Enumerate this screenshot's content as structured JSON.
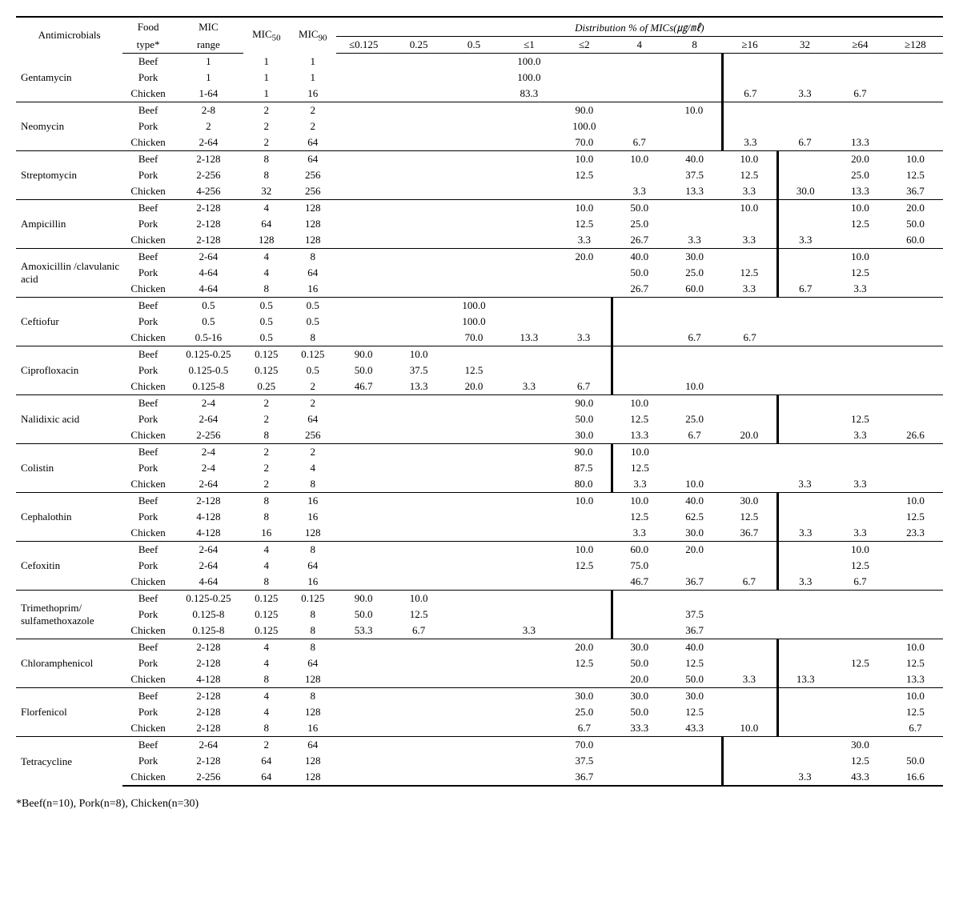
{
  "headers": {
    "antimicrobials": "Antimicrobials",
    "food_type": "Food type*",
    "mic_range": "MIC range",
    "mic50": "MIC",
    "mic50_sub": "50",
    "mic90": "MIC",
    "mic90_sub": "90",
    "dist_title": "Distribution % of  MICs(㎍/㎖)",
    "dist_cols": [
      "≤0.125",
      "0.25",
      "0.5",
      "≤1",
      "≤2",
      "4",
      "8",
      "≥16",
      "32",
      "≥64",
      "≥128"
    ]
  },
  "footnote": "*Beef(n=10), Pork(n=8), Chicken(n=30)",
  "groups": [
    {
      "name": "Gentamycin",
      "bp": 7,
      "rows": [
        {
          "food": "Beef",
          "range": "1",
          "m50": "1",
          "m90": "1",
          "d": [
            "",
            "",
            "",
            "100.0",
            "",
            "",
            "",
            "",
            "",
            "",
            ""
          ]
        },
        {
          "food": "Pork",
          "range": "1",
          "m50": "1",
          "m90": "1",
          "d": [
            "",
            "",
            "",
            "100.0",
            "",
            "",
            "",
            "",
            "",
            "",
            ""
          ]
        },
        {
          "food": "Chicken",
          "range": "1-64",
          "m50": "1",
          "m90": "16",
          "d": [
            "",
            "",
            "",
            "83.3",
            "",
            "",
            "",
            "6.7",
            "3.3",
            "6.7",
            ""
          ]
        }
      ]
    },
    {
      "name": "Neomycin",
      "bp": 7,
      "rows": [
        {
          "food": "Beef",
          "range": "2-8",
          "m50": "2",
          "m90": "2",
          "d": [
            "",
            "",
            "",
            "",
            "90.0",
            "",
            "10.0",
            "",
            "",
            "",
            ""
          ]
        },
        {
          "food": "Pork",
          "range": "2",
          "m50": "2",
          "m90": "2",
          "d": [
            "",
            "",
            "",
            "",
            "100.0",
            "",
            "",
            "",
            "",
            "",
            ""
          ]
        },
        {
          "food": "Chicken",
          "range": "2-64",
          "m50": "2",
          "m90": "64",
          "d": [
            "",
            "",
            "",
            "",
            "70.0",
            "6.7",
            "",
            "3.3",
            "6.7",
            "13.3",
            ""
          ]
        }
      ]
    },
    {
      "name": "Streptomycin",
      "bp": 8,
      "rows": [
        {
          "food": "Beef",
          "range": "2-128",
          "m50": "8",
          "m90": "64",
          "d": [
            "",
            "",
            "",
            "",
            "10.0",
            "10.0",
            "40.0",
            "10.0",
            "",
            "20.0",
            "10.0"
          ]
        },
        {
          "food": "Pork",
          "range": "2-256",
          "m50": "8",
          "m90": "256",
          "d": [
            "",
            "",
            "",
            "",
            "12.5",
            "",
            "37.5",
            "12.5",
            "",
            "25.0",
            "12.5"
          ]
        },
        {
          "food": "Chicken",
          "range": "4-256",
          "m50": "32",
          "m90": "256",
          "d": [
            "",
            "",
            "",
            "",
            "",
            "3.3",
            "13.3",
            "3.3",
            "30.0",
            "13.3",
            "36.7"
          ]
        }
      ]
    },
    {
      "name": "Ampicillin",
      "bp": 8,
      "rows": [
        {
          "food": "Beef",
          "range": "2-128",
          "m50": "4",
          "m90": "128",
          "d": [
            "",
            "",
            "",
            "",
            "10.0",
            "50.0",
            "",
            "10.0",
            "",
            "10.0",
            "20.0"
          ]
        },
        {
          "food": "Pork",
          "range": "2-128",
          "m50": "64",
          "m90": "128",
          "d": [
            "",
            "",
            "",
            "",
            "12.5",
            "25.0",
            "",
            "",
            "",
            "12.5",
            "50.0"
          ]
        },
        {
          "food": "Chicken",
          "range": "2-128",
          "m50": "128",
          "m90": "128",
          "d": [
            "",
            "",
            "",
            "",
            "3.3",
            "26.7",
            "3.3",
            "3.3",
            "3.3",
            "",
            "60.0"
          ]
        }
      ]
    },
    {
      "name": "Amoxicillin /clavulanic acid",
      "bp": 8,
      "rows": [
        {
          "food": "Beef",
          "range": "2-64",
          "m50": "4",
          "m90": "8",
          "d": [
            "",
            "",
            "",
            "",
            "20.0",
            "40.0",
            "30.0",
            "",
            "",
            "10.0",
            ""
          ]
        },
        {
          "food": "Pork",
          "range": "4-64",
          "m50": "4",
          "m90": "64",
          "d": [
            "",
            "",
            "",
            "",
            "",
            "50.0",
            "25.0",
            "12.5",
            "",
            "12.5",
            ""
          ]
        },
        {
          "food": "Chicken",
          "range": "4-64",
          "m50": "8",
          "m90": "16",
          "d": [
            "",
            "",
            "",
            "",
            "",
            "26.7",
            "60.0",
            "3.3",
            "6.7",
            "3.3",
            ""
          ]
        }
      ]
    },
    {
      "name": "Ceftiofur",
      "bp": 5,
      "rows": [
        {
          "food": "Beef",
          "range": "0.5",
          "m50": "0.5",
          "m90": "0.5",
          "d": [
            "",
            "",
            "100.0",
            "",
            "",
            "",
            "",
            "",
            "",
            "",
            ""
          ]
        },
        {
          "food": "Pork",
          "range": "0.5",
          "m50": "0.5",
          "m90": "0.5",
          "d": [
            "",
            "",
            "100.0",
            "",
            "",
            "",
            "",
            "",
            "",
            "",
            ""
          ]
        },
        {
          "food": "Chicken",
          "range": "0.5-16",
          "m50": "0.5",
          "m90": "8",
          "d": [
            "",
            "",
            "70.0",
            "13.3",
            "3.3",
            "",
            "6.7",
            "6.7",
            "",
            "",
            ""
          ]
        }
      ]
    },
    {
      "name": "Ciprofloxacin",
      "bp": 5,
      "rows": [
        {
          "food": "Beef",
          "range": "0.125-0.25",
          "m50": "0.125",
          "m90": "0.125",
          "d": [
            "90.0",
            "10.0",
            "",
            "",
            "",
            "",
            "",
            "",
            "",
            "",
            ""
          ]
        },
        {
          "food": "Pork",
          "range": "0.125-0.5",
          "m50": "0.125",
          "m90": "0.5",
          "d": [
            "50.0",
            "37.5",
            "12.5",
            "",
            "",
            "",
            "",
            "",
            "",
            "",
            ""
          ]
        },
        {
          "food": "Chicken",
          "range": "0.125-8",
          "m50": "0.25",
          "m90": "2",
          "d": [
            "46.7",
            "13.3",
            "20.0",
            "3.3",
            "6.7",
            "",
            "10.0",
            "",
            "",
            "",
            ""
          ]
        }
      ]
    },
    {
      "name": "Nalidixic acid",
      "bp": 8,
      "rows": [
        {
          "food": "Beef",
          "range": "2-4",
          "m50": "2",
          "m90": "2",
          "d": [
            "",
            "",
            "",
            "",
            "90.0",
            "10.0",
            "",
            "",
            "",
            "",
            ""
          ]
        },
        {
          "food": "Pork",
          "range": "2-64",
          "m50": "2",
          "m90": "64",
          "d": [
            "",
            "",
            "",
            "",
            "50.0",
            "12.5",
            "25.0",
            "",
            "",
            "12.5",
            ""
          ]
        },
        {
          "food": "Chicken",
          "range": "2-256",
          "m50": "8",
          "m90": "256",
          "d": [
            "",
            "",
            "",
            "",
            "30.0",
            "13.3",
            "6.7",
            "20.0",
            "",
            "3.3",
            "26.6"
          ]
        }
      ]
    },
    {
      "name": "Colistin",
      "bp": 5,
      "rows": [
        {
          "food": "Beef",
          "range": "2-4",
          "m50": "2",
          "m90": "2",
          "d": [
            "",
            "",
            "",
            "",
            "90.0",
            "10.0",
            "",
            "",
            "",
            "",
            ""
          ]
        },
        {
          "food": "Pork",
          "range": "2-4",
          "m50": "2",
          "m90": "4",
          "d": [
            "",
            "",
            "",
            "",
            "87.5",
            "12.5",
            "",
            "",
            "",
            "",
            ""
          ]
        },
        {
          "food": "Chicken",
          "range": "2-64",
          "m50": "2",
          "m90": "8",
          "d": [
            "",
            "",
            "",
            "",
            "80.0",
            "3.3",
            "10.0",
            "",
            "3.3",
            "3.3",
            ""
          ]
        }
      ]
    },
    {
      "name": "Cephalothin",
      "bp": 8,
      "rows": [
        {
          "food": "Beef",
          "range": "2-128",
          "m50": "8",
          "m90": "16",
          "d": [
            "",
            "",
            "",
            "",
            "10.0",
            "10.0",
            "40.0",
            "30.0",
            "",
            "",
            "10.0"
          ]
        },
        {
          "food": "Pork",
          "range": "4-128",
          "m50": "8",
          "m90": "16",
          "d": [
            "",
            "",
            "",
            "",
            "",
            "12.5",
            "62.5",
            "12.5",
            "",
            "",
            "12.5"
          ]
        },
        {
          "food": "Chicken",
          "range": "4-128",
          "m50": "16",
          "m90": "128",
          "d": [
            "",
            "",
            "",
            "",
            "",
            "3.3",
            "30.0",
            "36.7",
            "3.3",
            "3.3",
            "23.3"
          ]
        }
      ]
    },
    {
      "name": "Cefoxitin",
      "bp": 8,
      "rows": [
        {
          "food": "Beef",
          "range": "2-64",
          "m50": "4",
          "m90": "8",
          "d": [
            "",
            "",
            "",
            "",
            "10.0",
            "60.0",
            "20.0",
            "",
            "",
            "10.0",
            ""
          ]
        },
        {
          "food": "Pork",
          "range": "2-64",
          "m50": "4",
          "m90": "64",
          "d": [
            "",
            "",
            "",
            "",
            "12.5",
            "75.0",
            "",
            "",
            "",
            "12.5",
            ""
          ]
        },
        {
          "food": "Chicken",
          "range": "4-64",
          "m50": "8",
          "m90": "16",
          "d": [
            "",
            "",
            "",
            "",
            "",
            "46.7",
            "36.7",
            "6.7",
            "3.3",
            "6.7",
            ""
          ]
        }
      ]
    },
    {
      "name": "Trimethoprim/ sulfamethoxazole",
      "bp": 5,
      "rows": [
        {
          "food": "Beef",
          "range": "0.125-0.25",
          "m50": "0.125",
          "m90": "0.125",
          "d": [
            "90.0",
            "10.0",
            "",
            "",
            "",
            "",
            "",
            "",
            "",
            "",
            ""
          ]
        },
        {
          "food": "Pork",
          "range": "0.125-8",
          "m50": "0.125",
          "m90": "8",
          "d": [
            "50.0",
            "12.5",
            "",
            "",
            "",
            "",
            "37.5",
            "",
            "",
            "",
            ""
          ]
        },
        {
          "food": "Chicken",
          "range": "0.125-8",
          "m50": "0.125",
          "m90": "8",
          "d": [
            "53.3",
            "6.7",
            "",
            "3.3",
            "",
            "",
            "36.7",
            "",
            "",
            "",
            ""
          ]
        }
      ]
    },
    {
      "name": "Chloramphenicol",
      "bp": 8,
      "rows": [
        {
          "food": "Beef",
          "range": "2-128",
          "m50": "4",
          "m90": "8",
          "d": [
            "",
            "",
            "",
            "",
            "20.0",
            "30.0",
            "40.0",
            "",
            "",
            "",
            "10.0"
          ]
        },
        {
          "food": "Pork",
          "range": "2-128",
          "m50": "4",
          "m90": "64",
          "d": [
            "",
            "",
            "",
            "",
            "12.5",
            "50.0",
            "12.5",
            "",
            "",
            "12.5",
            "12.5"
          ]
        },
        {
          "food": "Chicken",
          "range": "4-128",
          "m50": "8",
          "m90": "128",
          "d": [
            "",
            "",
            "",
            "",
            "",
            "20.0",
            "50.0",
            "3.3",
            "13.3",
            "",
            "13.3"
          ]
        }
      ]
    },
    {
      "name": "Florfenicol",
      "bp": 8,
      "rows": [
        {
          "food": "Beef",
          "range": "2-128",
          "m50": "4",
          "m90": "8",
          "d": [
            "",
            "",
            "",
            "",
            "30.0",
            "30.0",
            "30.0",
            "",
            "",
            "",
            "10.0"
          ]
        },
        {
          "food": "Pork",
          "range": "2-128",
          "m50": "4",
          "m90": "128",
          "d": [
            "",
            "",
            "",
            "",
            "25.0",
            "50.0",
            "12.5",
            "",
            "",
            "",
            "12.5"
          ]
        },
        {
          "food": "Chicken",
          "range": "2-128",
          "m50": "8",
          "m90": "16",
          "d": [
            "",
            "",
            "",
            "",
            "6.7",
            "33.3",
            "43.3",
            "10.0",
            "",
            "",
            "6.7"
          ]
        }
      ]
    },
    {
      "name": "Tetracycline",
      "bp": 7,
      "rows": [
        {
          "food": "Beef",
          "range": "2-64",
          "m50": "2",
          "m90": "64",
          "d": [
            "",
            "",
            "",
            "",
            "70.0",
            "",
            "",
            "",
            "",
            "30.0",
            ""
          ]
        },
        {
          "food": "Pork",
          "range": "2-128",
          "m50": "64",
          "m90": "128",
          "d": [
            "",
            "",
            "",
            "",
            "37.5",
            "",
            "",
            "",
            "",
            "12.5",
            "50.0"
          ]
        },
        {
          "food": "Chicken",
          "range": "2-256",
          "m50": "64",
          "m90": "128",
          "d": [
            "",
            "",
            "",
            "",
            "36.7",
            "",
            "",
            "",
            "3.3",
            "43.3",
            "16.6"
          ]
        }
      ]
    }
  ]
}
